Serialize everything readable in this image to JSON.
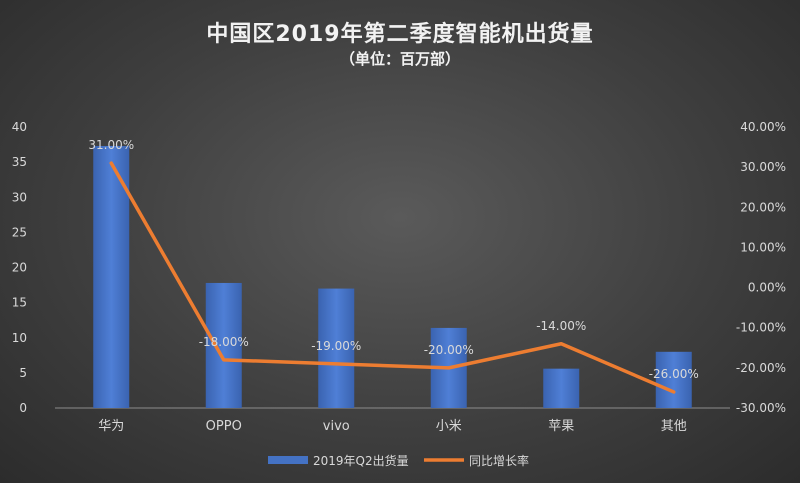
{
  "title": "中国区2019年第二季度智能机出货量",
  "subtitle": "（单位：百万部）",
  "chart_data": {
    "type": "bar",
    "categories": [
      "华为",
      "OPPO",
      "vivo",
      "小米",
      "苹果",
      "其他"
    ],
    "series": [
      {
        "name": "2019年Q2出货量",
        "type": "bar",
        "axis": "left",
        "color": "#4472c4",
        "values": [
          37.3,
          17.8,
          17.0,
          11.4,
          5.6,
          8.0
        ]
      },
      {
        "name": "同比增长率",
        "type": "line",
        "axis": "right",
        "color": "#ed7d31",
        "values": [
          31.0,
          -18.0,
          -19.0,
          -20.0,
          -14.0,
          -26.0
        ],
        "data_labels": [
          "31.00%",
          "-18.00%",
          "-19.00%",
          "-20.00%",
          "-14.00%",
          "-26.00%"
        ]
      }
    ],
    "y_left": {
      "ylim": [
        0,
        40
      ],
      "ticks": [
        "0",
        "5",
        "10",
        "15",
        "20",
        "25",
        "30",
        "35",
        "40"
      ]
    },
    "y_right": {
      "ylim": [
        -30,
        40
      ],
      "ticks": [
        "-30.00%",
        "-20.00%",
        "-10.00%",
        "0.00%",
        "10.00%",
        "20.00%",
        "30.00%",
        "40.00%"
      ]
    },
    "grid": false,
    "legend": "bottom"
  }
}
